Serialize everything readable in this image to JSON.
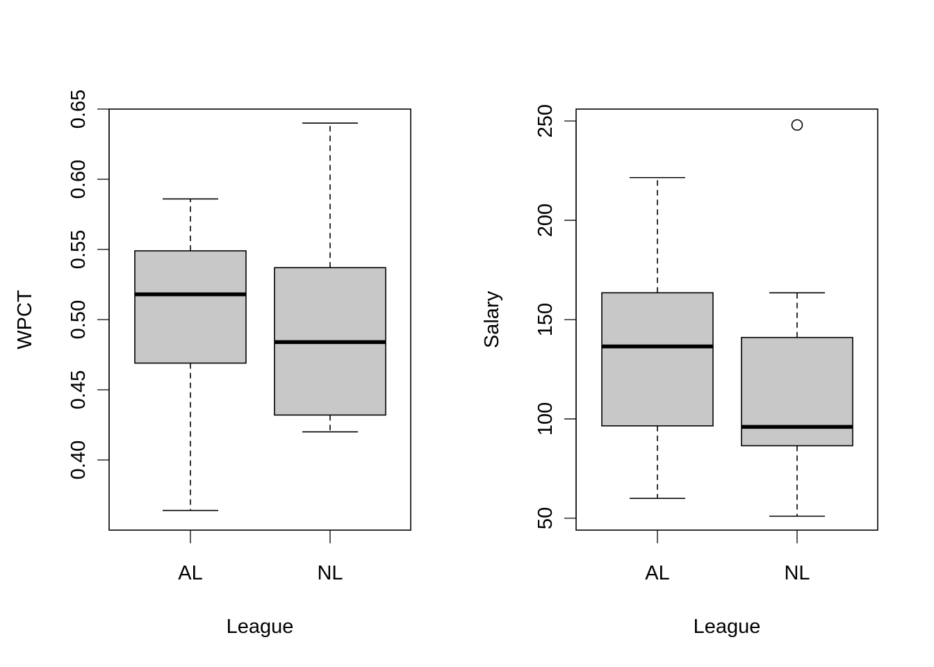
{
  "chart_data": [
    {
      "type": "boxplot",
      "xlabel": "League",
      "ylabel": "WPCT",
      "categories": [
        "AL",
        "NL"
      ],
      "ylim": [
        0.35,
        0.65
      ],
      "yticks": [
        0.4,
        0.45,
        0.5,
        0.55,
        0.6,
        0.65
      ],
      "ytick_labels": [
        "0.40",
        "0.45",
        "0.50",
        "0.55",
        "0.60",
        "0.65"
      ],
      "boxes": [
        {
          "category": "AL",
          "whisker_low": 0.364,
          "q1": 0.469,
          "median": 0.518,
          "q3": 0.549,
          "whisker_high": 0.586,
          "outliers": []
        },
        {
          "category": "NL",
          "whisker_low": 0.42,
          "q1": 0.432,
          "median": 0.484,
          "q3": 0.537,
          "whisker_high": 0.64,
          "outliers": []
        }
      ]
    },
    {
      "type": "boxplot",
      "xlabel": "League",
      "ylabel": "Salary",
      "categories": [
        "AL",
        "NL"
      ],
      "ylim": [
        44,
        256
      ],
      "yticks": [
        50,
        100,
        150,
        200,
        250
      ],
      "ytick_labels": [
        "50",
        "100",
        "150",
        "200",
        "250"
      ],
      "boxes": [
        {
          "category": "AL",
          "whisker_low": 60,
          "q1": 96.5,
          "median": 136.5,
          "q3": 163.5,
          "whisker_high": 221.5,
          "outliers": []
        },
        {
          "category": "NL",
          "whisker_low": 51,
          "q1": 86.5,
          "median": 96,
          "q3": 141,
          "whisker_high": 163.5,
          "outliers": [
            248
          ]
        }
      ]
    }
  ]
}
